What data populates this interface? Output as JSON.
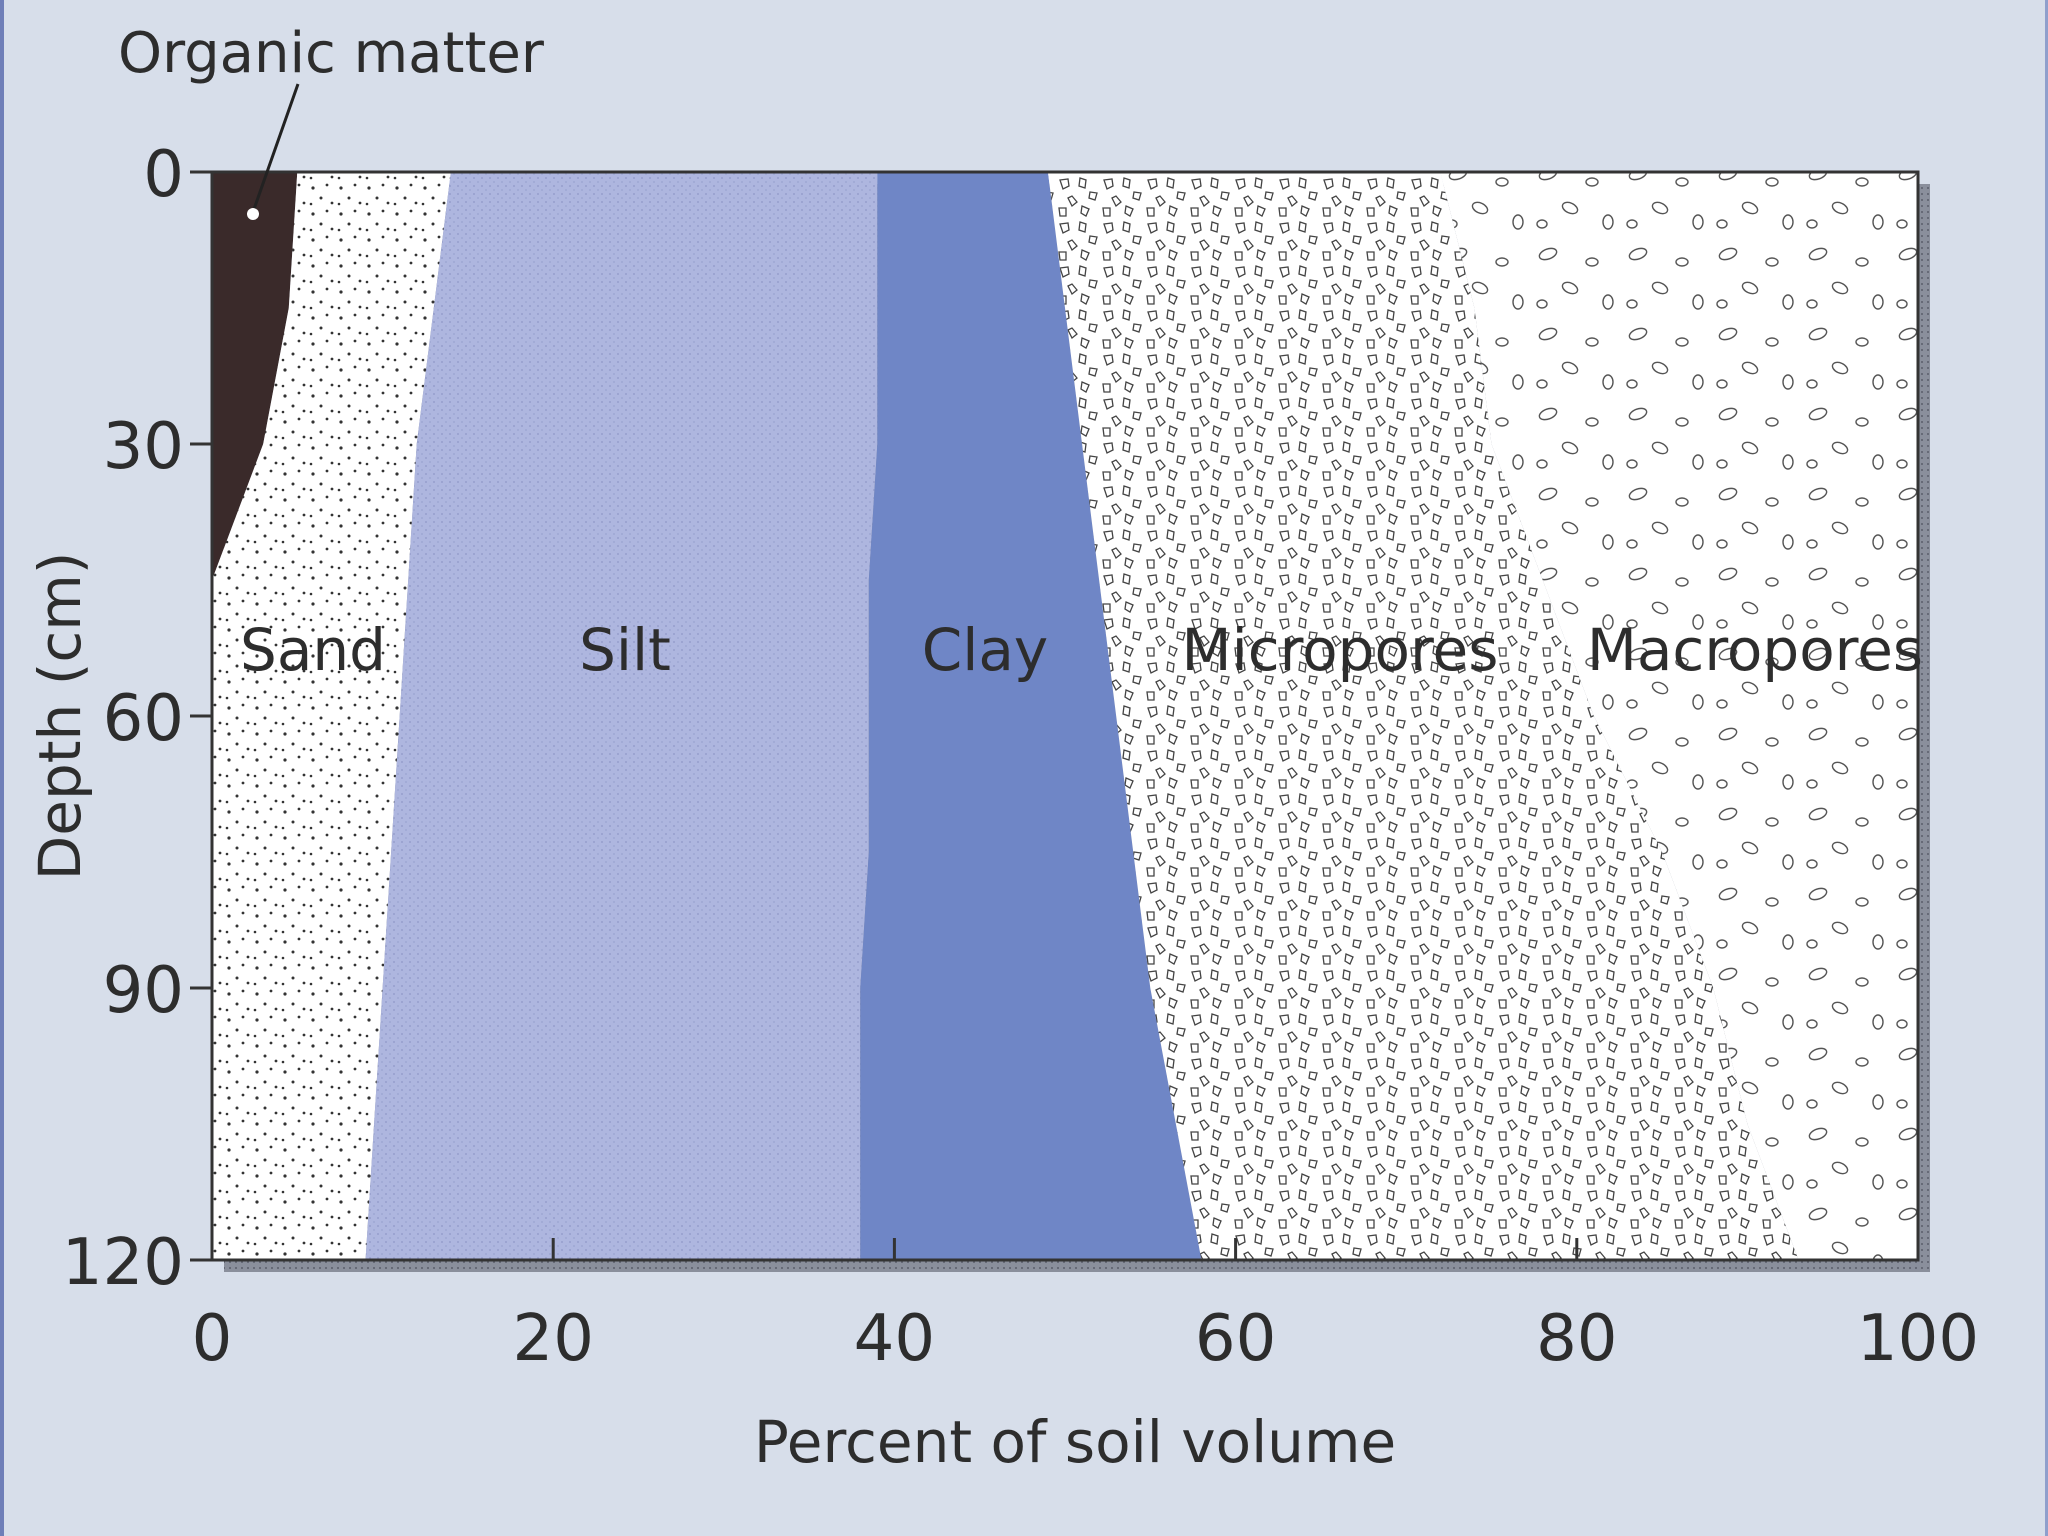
{
  "chart_data": {
    "type": "area",
    "title": "",
    "xlabel": "Percent of soil volume",
    "ylabel": "Depth (cm)",
    "xlim": [
      0,
      100
    ],
    "ylim": [
      0,
      120
    ],
    "y_inverted": true,
    "x_ticks": [
      "0",
      "20",
      "40",
      "60",
      "80",
      "100"
    ],
    "y_ticks": [
      "0",
      "30",
      "60",
      "90",
      "120"
    ],
    "depths": [
      0,
      15,
      30,
      45,
      60,
      75,
      90,
      105,
      120
    ],
    "series": [
      {
        "name": "Organic matter",
        "cumulative": [
          5,
          4.5,
          3,
          0,
          0,
          0,
          0,
          0,
          0
        ]
      },
      {
        "name": "Sand",
        "cumulative": [
          14,
          13,
          12,
          11.5,
          11,
          10.5,
          10,
          9.5,
          9
        ]
      },
      {
        "name": "Silt",
        "cumulative": [
          39,
          39,
          39,
          38.5,
          38.5,
          38.5,
          38,
          38,
          38
        ]
      },
      {
        "name": "Clay",
        "cumulative": [
          49,
          50,
          51,
          52,
          53,
          54,
          55,
          56.5,
          58
        ]
      },
      {
        "name": "Micropores",
        "cumulative": [
          72,
          74,
          75,
          78,
          81,
          85,
          88,
          90,
          93
        ]
      },
      {
        "name": "Macropores",
        "cumulative": [
          100,
          100,
          100,
          100,
          100,
          100,
          100,
          100,
          100
        ]
      }
    ],
    "annotation": "Organic matter",
    "colors": {
      "organic": "#3a2a2a",
      "sand": "#ffffff",
      "silt": "#aeb6df",
      "clay": "#6f86c6",
      "micro": "#ffffff",
      "macro": "#ffffff",
      "background": "#d7deea"
    }
  },
  "labels": {
    "sand": "Sand",
    "silt": "Silt",
    "clay": "Clay",
    "micropores": "Micropores",
    "macropores": "Macropores"
  }
}
